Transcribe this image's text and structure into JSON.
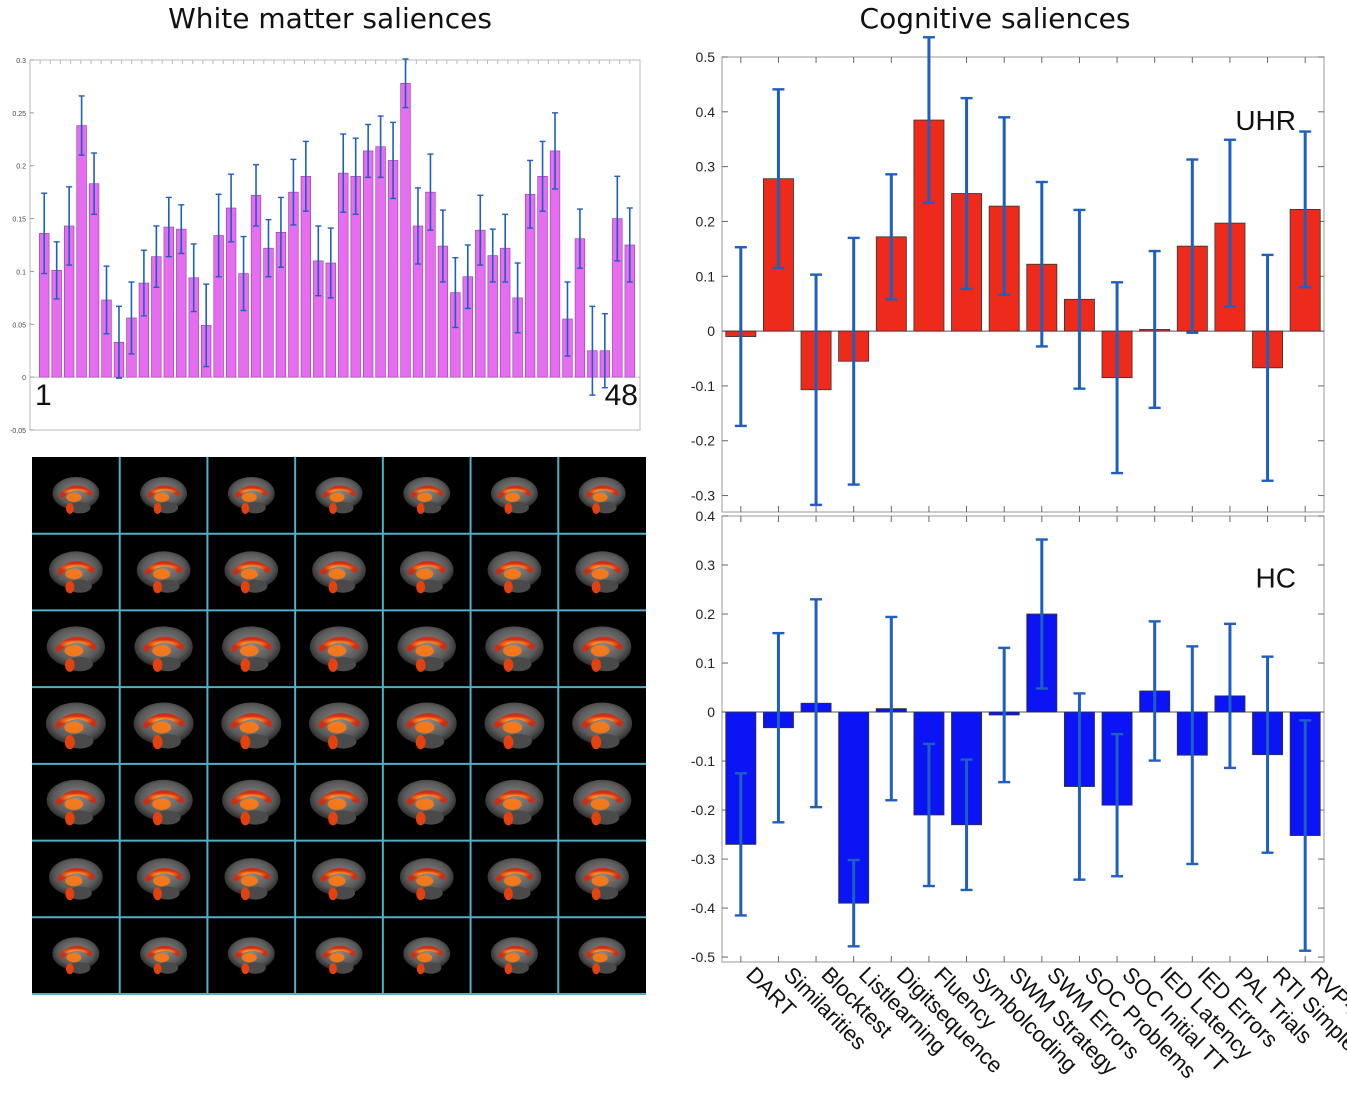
{
  "titles": {
    "left": "White matter saliences",
    "right": "Cognitive saliences"
  },
  "chart_data": [
    {
      "type": "bar",
      "name": "white-matter",
      "title": "White matter saliences",
      "ylim": [
        -0.05,
        0.3
      ],
      "yticks": [
        -0.05,
        0,
        0.05,
        0.1,
        0.15,
        0.2,
        0.25,
        0.3
      ],
      "first_label": "1",
      "last_label": "48",
      "bar_color": "#e66cf0",
      "error_color": "#1f5fbf",
      "values": [
        0.136,
        0.101,
        0.143,
        0.238,
        0.183,
        0.073,
        0.033,
        0.056,
        0.089,
        0.114,
        0.142,
        0.14,
        0.094,
        0.049,
        0.134,
        0.16,
        0.098,
        0.172,
        0.122,
        0.137,
        0.175,
        0.19,
        0.11,
        0.108,
        0.193,
        0.19,
        0.214,
        0.218,
        0.205,
        0.278,
        0.143,
        0.175,
        0.124,
        0.08,
        0.095,
        0.139,
        0.115,
        0.122,
        0.075,
        0.173,
        0.19,
        0.214,
        0.055,
        0.131,
        0.025,
        0.025,
        0.15,
        0.125
      ],
      "errors": [
        0.038,
        0.027,
        0.037,
        0.028,
        0.029,
        0.032,
        0.034,
        0.034,
        0.031,
        0.029,
        0.028,
        0.023,
        0.032,
        0.039,
        0.039,
        0.032,
        0.035,
        0.029,
        0.027,
        0.033,
        0.031,
        0.033,
        0.033,
        0.033,
        0.037,
        0.036,
        0.025,
        0.029,
        0.036,
        0.023,
        0.036,
        0.036,
        0.034,
        0.033,
        0.03,
        0.033,
        0.025,
        0.032,
        0.033,
        0.032,
        0.033,
        0.036,
        0.035,
        0.028,
        0.042,
        0.035,
        0.04,
        0.035
      ]
    },
    {
      "type": "bar",
      "name": "UHR",
      "ylim": [
        -0.33,
        0.5
      ],
      "yticks": [
        -0.3,
        -0.2,
        -0.1,
        0,
        0.1,
        0.2,
        0.3,
        0.4,
        0.5
      ],
      "group_label": "UHR",
      "bar_color": "#ee2a1b",
      "error_color": "#1f5fbf",
      "values": [
        -0.01,
        0.278,
        -0.107,
        -0.055,
        0.172,
        0.385,
        0.251,
        0.228,
        0.122,
        0.058,
        -0.085,
        0.003,
        0.155,
        0.197,
        -0.067,
        0.222
      ],
      "errors": [
        0.163,
        0.163,
        0.21,
        0.225,
        0.114,
        0.151,
        0.174,
        0.162,
        0.15,
        0.163,
        0.174,
        0.143,
        0.158,
        0.152,
        0.206,
        0.142
      ]
    },
    {
      "type": "bar",
      "name": "HC",
      "ylim": [
        -0.51,
        0.4
      ],
      "yticks": [
        -0.5,
        -0.4,
        -0.3,
        -0.2,
        -0.1,
        0,
        0.1,
        0.2,
        0.3,
        0.4
      ],
      "group_label": "HC",
      "bar_color": "#0a14f5",
      "error_color": "#1f5fbf",
      "categories": [
        "DART",
        "Similarities",
        "Blocktest",
        "Listlearning",
        "Digitsequence",
        "Fluency",
        "Symbolcoding",
        "SWM Strategy",
        "SWM Errors",
        "SOC Problems",
        "SOC Initial TT",
        "IED Latency",
        "IED Errors",
        "PAL Trials",
        "RTI Simple",
        "RVP-A'"
      ],
      "values": [
        -0.27,
        -0.032,
        0.018,
        -0.39,
        0.007,
        -0.21,
        -0.23,
        -0.006,
        0.2,
        -0.152,
        -0.19,
        0.043,
        -0.088,
        0.033,
        -0.087,
        -0.252
      ],
      "errors": [
        0.145,
        0.193,
        0.212,
        0.088,
        0.187,
        0.145,
        0.133,
        0.137,
        0.152,
        0.19,
        0.145,
        0.142,
        0.222,
        0.147,
        0.2,
        0.235
      ]
    }
  ],
  "brain_grid": {
    "rows": 7,
    "cols": 7,
    "background": "#000000",
    "line_color": "#4fb0c6"
  }
}
